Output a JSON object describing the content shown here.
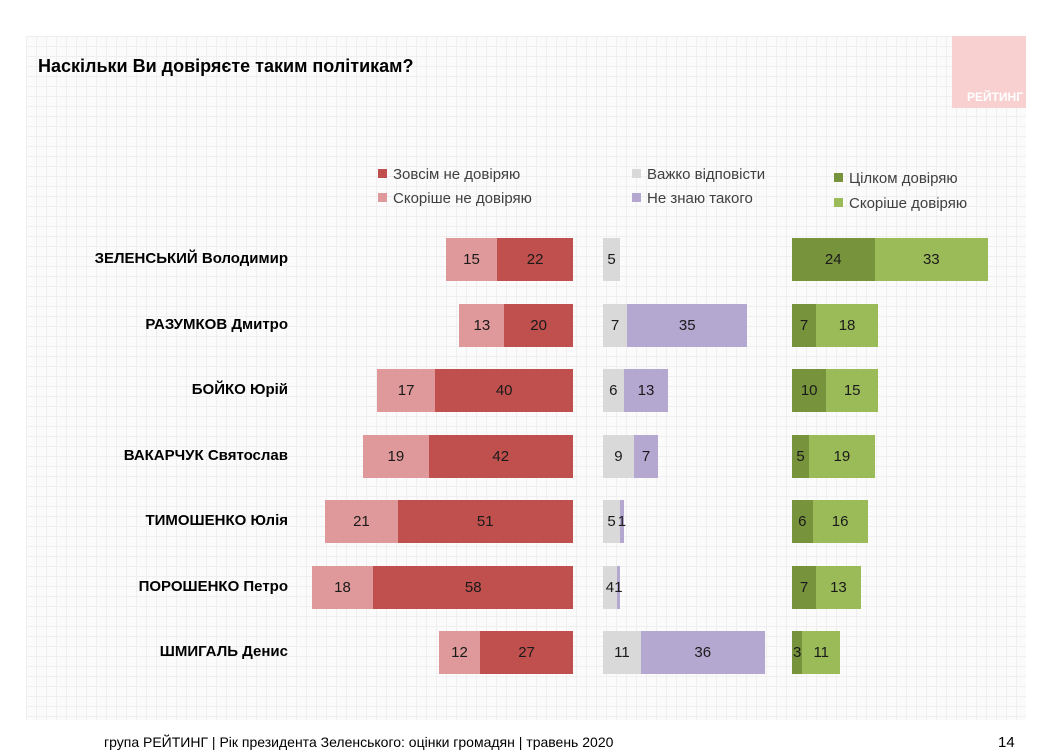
{
  "title": "Наскільки Ви довіряєте таким політикам?",
  "logo_text": "РЕЙТИНГ",
  "footer": "група РЕЙТИНГ | Рік президента Зеленського: оцінки громадян | травень 2020",
  "page_number": "14",
  "colors": {
    "not_at_all": "#c0504d",
    "rather_not": "#e0999a",
    "hard_to_say": "#d9d9d9",
    "dont_know": "#b4a7d0",
    "fully": "#77933c",
    "rather": "#9bbb59"
  },
  "legend": [
    {
      "label": "Зовсім не довіряю",
      "color": "#c0504d"
    },
    {
      "label": "Скоріше не довіряю",
      "color": "#e0999a"
    },
    {
      "label": "Важко відповісти",
      "color": "#d9d9d9"
    },
    {
      "label": "Не знаю такого",
      "color": "#b4a7d0"
    },
    {
      "label": "Цілком довіряю",
      "color": "#77933c"
    },
    {
      "label": "Скоріше довіряю",
      "color": "#9bbb59"
    }
  ],
  "chart_data": {
    "type": "bar",
    "orientation": "horizontal",
    "title": "Наскільки Ви довіряєте таким політикам?",
    "categories": [
      "ЗЕЛЕНСЬКИЙ Володимир",
      "РАЗУМКОВ Дмитро",
      "БОЙКО Юрій",
      "ВАКАРЧУК Святослав",
      "ТИМОШЕНКО Юлія",
      "ПОРОШЕНКО Петро",
      "ШМИГАЛЬ Денис"
    ],
    "series": [
      {
        "name": "Зовсім не довіряю",
        "values": [
          22,
          20,
          40,
          42,
          51,
          58,
          27
        ]
      },
      {
        "name": "Скоріше не довіряю",
        "values": [
          15,
          13,
          17,
          19,
          21,
          18,
          12
        ]
      },
      {
        "name": "Важко відповісти",
        "values": [
          5,
          7,
          6,
          9,
          5,
          4,
          11
        ]
      },
      {
        "name": "Не знаю такого",
        "values": [
          0,
          35,
          13,
          7,
          1,
          1,
          36
        ]
      },
      {
        "name": "Цілком довіряю",
        "values": [
          24,
          7,
          10,
          5,
          6,
          7,
          3
        ]
      },
      {
        "name": "Скоріше довіряю",
        "values": [
          33,
          18,
          15,
          19,
          16,
          13,
          11
        ]
      }
    ],
    "legend_position": "top",
    "grid": false
  }
}
